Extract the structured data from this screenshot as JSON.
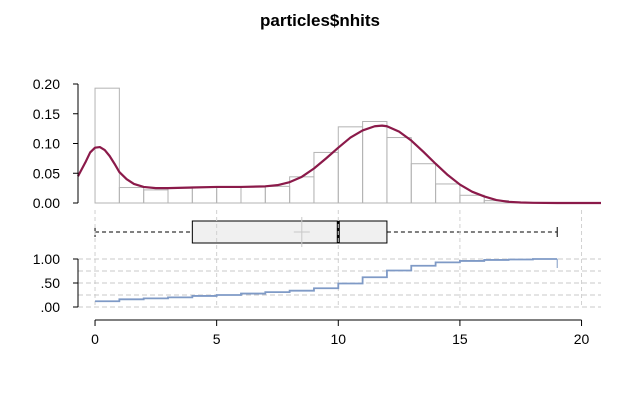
{
  "chart_data": {
    "type": "histogram-density-boxplot-ecdf",
    "title": "particles$nhits",
    "xlim": [
      -0.7,
      20.8
    ],
    "x_ticks": [
      0,
      5,
      10,
      15,
      20
    ],
    "histogram": {
      "ylim": [
        0,
        0.2
      ],
      "y_ticks": [
        "0.00",
        "0.05",
        "0.10",
        "0.15",
        "0.20"
      ],
      "bin_width": 1,
      "bins": [
        {
          "x0": 0,
          "x1": 1,
          "density": 0.193
        },
        {
          "x0": 1,
          "x1": 2,
          "density": 0.026
        },
        {
          "x0": 2,
          "x1": 3,
          "density": 0.022
        },
        {
          "x0": 3,
          "x1": 4,
          "density": 0.025
        },
        {
          "x0": 4,
          "x1": 5,
          "density": 0.027
        },
        {
          "x0": 5,
          "x1": 6,
          "density": 0.027
        },
        {
          "x0": 6,
          "x1": 7,
          "density": 0.027
        },
        {
          "x0": 7,
          "x1": 8,
          "density": 0.028
        },
        {
          "x0": 8,
          "x1": 9,
          "density": 0.044
        },
        {
          "x0": 9,
          "x1": 10,
          "density": 0.085
        },
        {
          "x0": 10,
          "x1": 11,
          "density": 0.128
        },
        {
          "x0": 11,
          "x1": 12,
          "density": 0.137
        },
        {
          "x0": 12,
          "x1": 13,
          "density": 0.11
        },
        {
          "x0": 13,
          "x1": 14,
          "density": 0.066
        },
        {
          "x0": 14,
          "x1": 15,
          "density": 0.032
        },
        {
          "x0": 15,
          "x1": 16,
          "density": 0.013
        },
        {
          "x0": 16,
          "x1": 17,
          "density": 0.004
        },
        {
          "x0": 17,
          "x1": 18,
          "density": 0.001
        },
        {
          "x0": 18,
          "x1": 19,
          "density": 0.0003
        }
      ]
    },
    "density_curve": {
      "color": "#8b1a4a",
      "points": [
        [
          -0.7,
          0.045
        ],
        [
          -0.4,
          0.068
        ],
        [
          -0.2,
          0.085
        ],
        [
          0.0,
          0.093
        ],
        [
          0.2,
          0.094
        ],
        [
          0.4,
          0.089
        ],
        [
          0.6,
          0.079
        ],
        [
          0.8,
          0.066
        ],
        [
          1.0,
          0.052
        ],
        [
          1.3,
          0.04
        ],
        [
          1.6,
          0.032
        ],
        [
          2.0,
          0.027
        ],
        [
          2.5,
          0.025
        ],
        [
          3.0,
          0.025
        ],
        [
          4.0,
          0.026
        ],
        [
          5.0,
          0.027
        ],
        [
          6.0,
          0.027
        ],
        [
          7.0,
          0.028
        ],
        [
          7.5,
          0.03
        ],
        [
          8.0,
          0.035
        ],
        [
          8.5,
          0.044
        ],
        [
          9.0,
          0.058
        ],
        [
          9.5,
          0.075
        ],
        [
          10.0,
          0.093
        ],
        [
          10.5,
          0.11
        ],
        [
          11.0,
          0.122
        ],
        [
          11.5,
          0.129
        ],
        [
          11.8,
          0.13
        ],
        [
          12.0,
          0.129
        ],
        [
          12.5,
          0.12
        ],
        [
          13.0,
          0.105
        ],
        [
          13.5,
          0.086
        ],
        [
          14.0,
          0.066
        ],
        [
          14.5,
          0.047
        ],
        [
          15.0,
          0.031
        ],
        [
          15.5,
          0.019
        ],
        [
          16.0,
          0.011
        ],
        [
          16.5,
          0.005
        ],
        [
          17.0,
          0.002
        ],
        [
          17.5,
          0.0008
        ],
        [
          18.0,
          0.0003
        ],
        [
          19.0,
          0.0
        ],
        [
          20.8,
          0.0
        ]
      ]
    },
    "boxplot": {
      "min": 0,
      "q1": 4,
      "median": 10,
      "q3": 12,
      "max": 19,
      "mean": 8.5,
      "fill": "#f0f0f0"
    },
    "ecdf": {
      "ylim": [
        0,
        1
      ],
      "y_ticks": [
        ".00",
        ".50",
        "1.00"
      ],
      "grid_levels": [
        0,
        0.25,
        0.5,
        0.75,
        1
      ],
      "color": "#7f9ac6",
      "points": [
        [
          0,
          0.12
        ],
        [
          1,
          0.16
        ],
        [
          2,
          0.18
        ],
        [
          3,
          0.2
        ],
        [
          4,
          0.23
        ],
        [
          5,
          0.25
        ],
        [
          6,
          0.28
        ],
        [
          7,
          0.31
        ],
        [
          8,
          0.34
        ],
        [
          9,
          0.39
        ],
        [
          10,
          0.49
        ],
        [
          11,
          0.62
        ],
        [
          12,
          0.76
        ],
        [
          13,
          0.86
        ],
        [
          14,
          0.93
        ],
        [
          15,
          0.96
        ],
        [
          16,
          0.98
        ],
        [
          17,
          0.99
        ],
        [
          18,
          1.0
        ],
        [
          19,
          1.0
        ]
      ]
    }
  }
}
